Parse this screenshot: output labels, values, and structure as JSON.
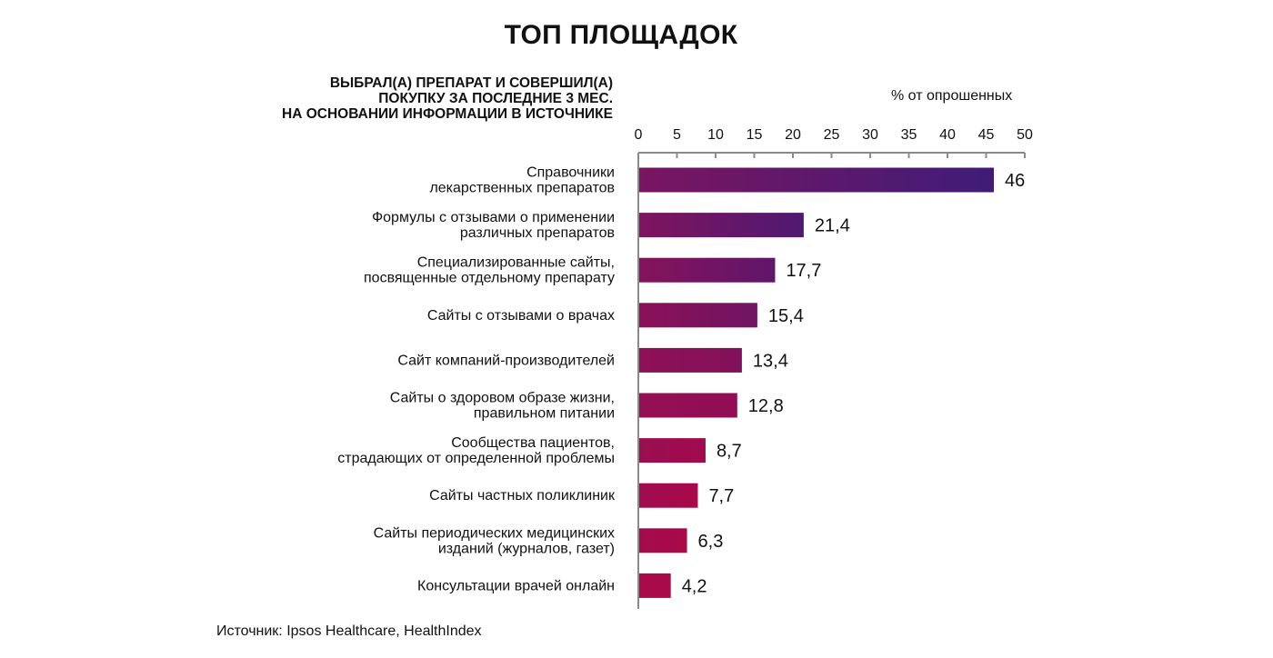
{
  "title": "ТОП ПЛОЩАДОК",
  "subtitle_lines": [
    "ВЫБРАЛ(А) ПРЕПАРАТ И СОВЕРШИЛ(А)",
    "ПОКУПКУ ЗА ПОСЛЕДНИЕ 3 МЕС.",
    "НА ОСНОВАНИИ ИНФОРМАЦИИ В ИСТОЧНИКЕ"
  ],
  "unit_label": "% от опрошенных",
  "source": "Источник: Ipsos Healthcare, HealthIndex",
  "colors": {
    "bar_top": "#4a1a6e",
    "bar_bottom": "#a80a4a",
    "axis": "#888888"
  },
  "chart_data": {
    "type": "bar",
    "orientation": "horizontal",
    "title": "ТОП ПЛОЩАДОК",
    "xlabel": "% от опрошенных",
    "xlim": [
      0,
      50
    ],
    "xticks": [
      "0",
      "5",
      "10",
      "15",
      "20",
      "25",
      "30",
      "35",
      "40",
      "45",
      "50"
    ],
    "grid": false,
    "categories": [
      [
        "Справочники",
        "лекарственных препаратов"
      ],
      [
        "Формулы с отзывами о применении",
        "различных препаратов"
      ],
      [
        "Специализированные сайты,",
        "посвященные отдельному препарату"
      ],
      [
        "Сайты с отзывами о врачах"
      ],
      [
        "Сайт компаний-производителей"
      ],
      [
        "Сайты о здоровом образе жизни,",
        "правильном питании"
      ],
      [
        "Сообщества пациентов,",
        "страдающих от определенной проблемы"
      ],
      [
        "Сайты частных поликлиник"
      ],
      [
        "Сайты периодических медицинских",
        "изданий (журналов, газет)"
      ],
      [
        "Консультации врачей онлайн"
      ]
    ],
    "values": [
      46,
      21.4,
      17.7,
      15.4,
      13.4,
      12.8,
      8.7,
      7.7,
      6.3,
      4.2
    ],
    "value_labels": [
      "46",
      "21,4",
      "17,7",
      "15,4",
      "13,4",
      "12,8",
      "8,7",
      "7,7",
      "6,3",
      "4,2"
    ]
  }
}
